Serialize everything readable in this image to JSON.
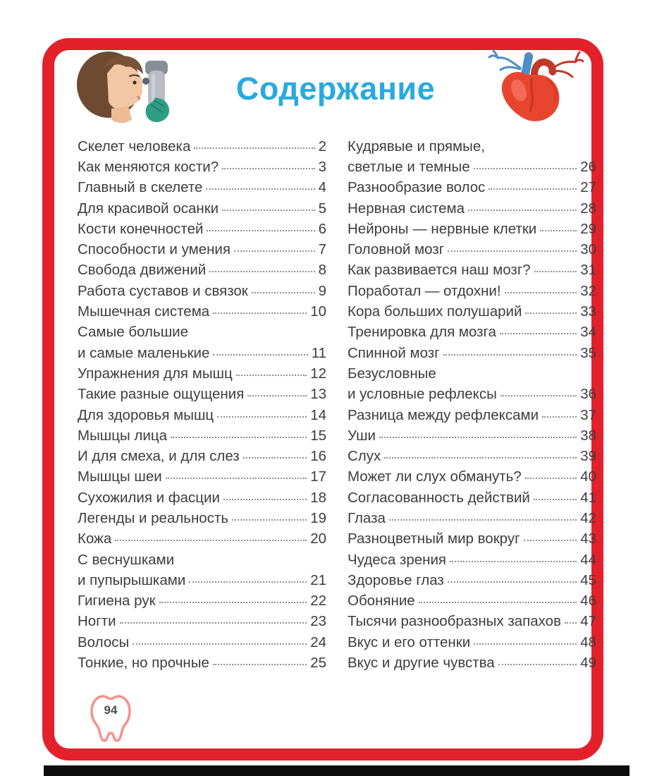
{
  "page": {
    "title": "Содержание",
    "page_number": "94",
    "colors": {
      "frame_red": "#e3212a",
      "title_blue": "#29a9e0",
      "text": "#3d3d3d",
      "leader_dots": "#8f8f8f",
      "tooth_outline": "#f2938c"
    }
  },
  "illustrations": {
    "left": "eye-examination-illustration",
    "right": "anatomical-heart-illustration",
    "footer": "tooth-page-number-badge"
  },
  "toc": {
    "left": [
      {
        "label": "Скелет человека",
        "page": "2"
      },
      {
        "label": "Как меняются кости?",
        "page": "3"
      },
      {
        "label": "Главный в скелете",
        "page": "4"
      },
      {
        "label": "Для красивой осанки",
        "page": "5"
      },
      {
        "label": "Кости конечностей",
        "page": "6"
      },
      {
        "label": "Способности и умения",
        "page": "7"
      },
      {
        "label": "Свобода движений",
        "page": "8"
      },
      {
        "label": "Работа суставов и связок",
        "page": "9"
      },
      {
        "label": "Мышечная система",
        "page": "10"
      },
      {
        "label": "Самые большие",
        "label2": "и самые маленькие",
        "page": "11"
      },
      {
        "label": "Упражнения для мышц",
        "page": "12"
      },
      {
        "label": "Такие разные ощущения",
        "page": "13"
      },
      {
        "label": "Для здоровья мышц",
        "page": "14"
      },
      {
        "label": "Мышцы лица",
        "page": "15"
      },
      {
        "label": "И для смеха, и для слез",
        "page": "16"
      },
      {
        "label": "Мышцы шеи",
        "page": "17"
      },
      {
        "label": "Сухожилия и фасции",
        "page": "18"
      },
      {
        "label": "Легенды и реальность",
        "page": "19"
      },
      {
        "label": "Кожа",
        "page": "20"
      },
      {
        "label": "С веснушками",
        "label2": "и пупырышками",
        "page": "21"
      },
      {
        "label": "Гигиена рук",
        "page": "22"
      },
      {
        "label": "Ногти",
        "page": "23"
      },
      {
        "label": "Волосы",
        "page": "24"
      },
      {
        "label": "Тонкие, но прочные",
        "page": "25"
      }
    ],
    "right": [
      {
        "label": "Кудрявые и прямые,",
        "label2": "светлые и темные",
        "page": "26"
      },
      {
        "label": "Разнообразие волос",
        "page": "27"
      },
      {
        "label": "Нервная система",
        "page": "28"
      },
      {
        "label": "Нейроны — нервные клетки",
        "page": "29"
      },
      {
        "label": "Головной мозг",
        "page": "30"
      },
      {
        "label": "Как развивается наш мозг?",
        "page": "31"
      },
      {
        "label": "Поработал — отдохни!",
        "page": "32"
      },
      {
        "label": "Кора больших полушарий",
        "page": "33"
      },
      {
        "label": "Тренировка для мозга",
        "page": "34"
      },
      {
        "label": "Спинной мозг",
        "page": "35"
      },
      {
        "label": "Безусловные",
        "label2": "и условные рефлексы",
        "page": "36"
      },
      {
        "label": "Разница между рефлексами",
        "page": "37"
      },
      {
        "label": "Уши",
        "page": "38"
      },
      {
        "label": "Слух",
        "page": "39"
      },
      {
        "label": "Может ли слух обмануть?",
        "page": "40"
      },
      {
        "label": "Согласованность действий",
        "page": "41"
      },
      {
        "label": "Глаза",
        "page": "42"
      },
      {
        "label": "Разноцветный мир вокруг",
        "page": "43"
      },
      {
        "label": "Чудеса зрения",
        "page": "44"
      },
      {
        "label": "Здоровье глаз",
        "page": "45"
      },
      {
        "label": "Обоняние",
        "page": "46"
      },
      {
        "label": "Тысячи разнообразных запахов",
        "page": "47"
      },
      {
        "label": "Вкус и его оттенки",
        "page": "48"
      },
      {
        "label": "Вкус и другие чувства",
        "page": "49"
      }
    ]
  }
}
